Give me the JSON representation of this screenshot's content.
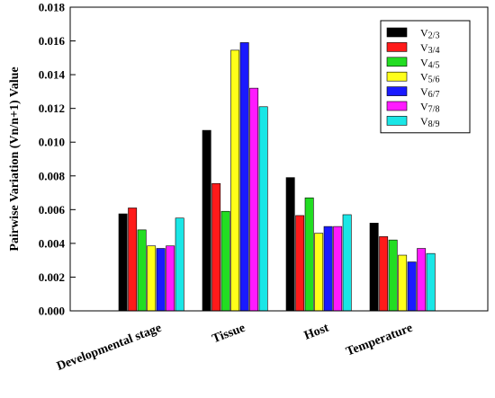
{
  "chart_data": {
    "type": "bar",
    "title": "",
    "xlabel": "",
    "ylabel": "Pairwise Variation (Vn/n+1) Value",
    "ylim": [
      0,
      0.018
    ],
    "yticks": [
      "0.000",
      "0.002",
      "0.004",
      "0.006",
      "0.008",
      "0.010",
      "0.012",
      "0.014",
      "0.016",
      "0.018"
    ],
    "categories": [
      "Developmental stage",
      "Tissue",
      "Host",
      "Temperature"
    ],
    "grid": false,
    "legend_position": "top-right",
    "series": [
      {
        "name": "V2/3",
        "num": "2",
        "den": "3",
        "color": "#000000",
        "values": [
          0.00575,
          0.0107,
          0.0079,
          0.0052
        ]
      },
      {
        "name": "V3/4",
        "num": "3",
        "den": "4",
        "color": "#ff1a1a",
        "values": [
          0.0061,
          0.00755,
          0.00565,
          0.0044
        ]
      },
      {
        "name": "V4/5",
        "num": "4",
        "den": "5",
        "color": "#22dd22",
        "values": [
          0.0048,
          0.0059,
          0.0067,
          0.0042
        ]
      },
      {
        "name": "V5/6",
        "num": "5",
        "den": "6",
        "color": "#ffff1a",
        "values": [
          0.00385,
          0.01545,
          0.0046,
          0.0033
        ]
      },
      {
        "name": "V6/7",
        "num": "6",
        "den": "7",
        "color": "#1a1aff",
        "values": [
          0.0037,
          0.0159,
          0.005,
          0.0029
        ]
      },
      {
        "name": "V7/8",
        "num": "7",
        "den": "8",
        "color": "#ff1aff",
        "values": [
          0.00385,
          0.0132,
          0.005,
          0.0037
        ]
      },
      {
        "name": "V8/9",
        "num": "8",
        "den": "9",
        "color": "#1ae6e6",
        "values": [
          0.0055,
          0.0121,
          0.0057,
          0.0034
        ]
      }
    ]
  }
}
